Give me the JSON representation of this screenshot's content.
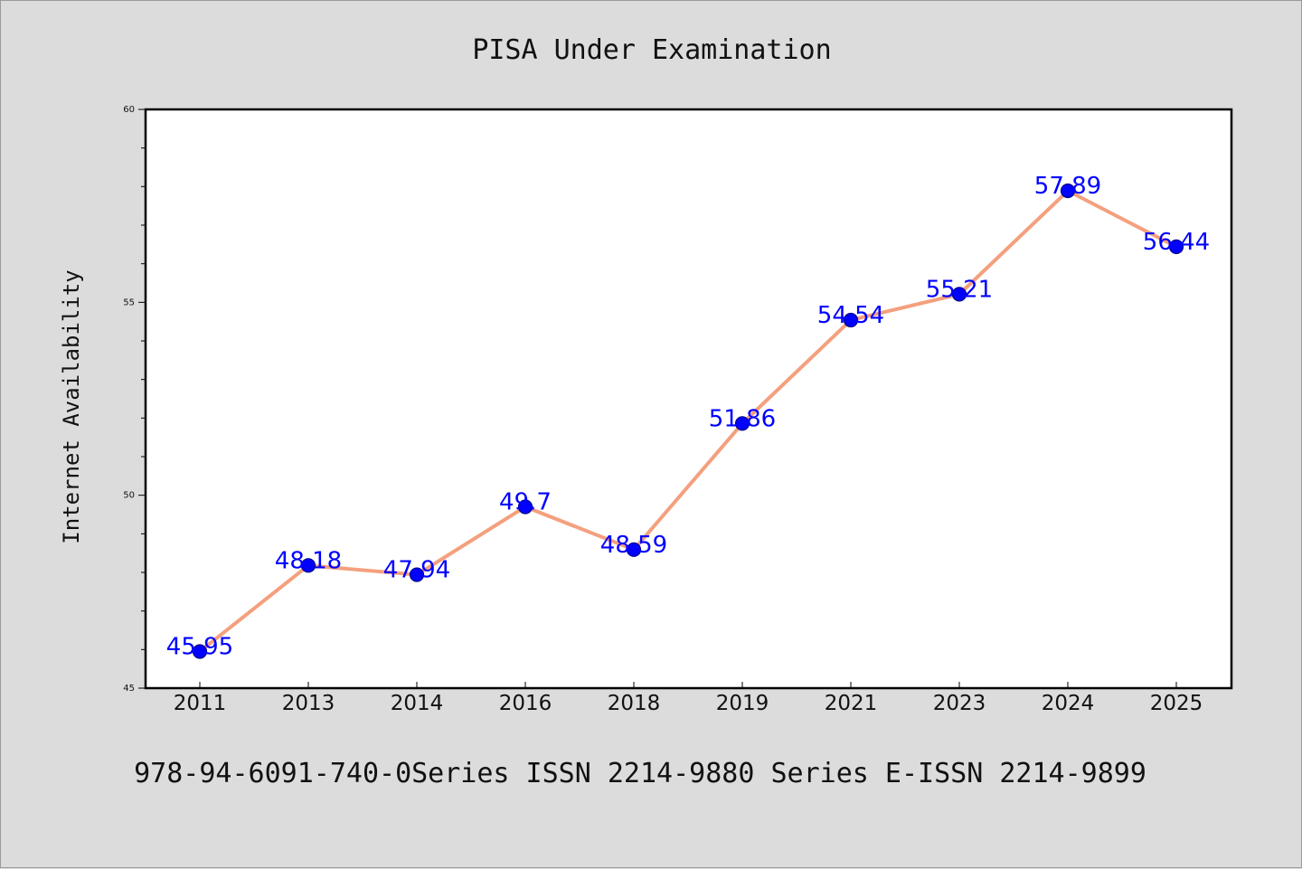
{
  "chart_data": {
    "type": "line",
    "title": "PISA Under Examination",
    "ylabel": "Internet Availability",
    "xlabel": "",
    "categories": [
      "2011",
      "2013",
      "2014",
      "2016",
      "2018",
      "2019",
      "2021",
      "2023",
      "2024",
      "2025"
    ],
    "values": [
      45.95,
      48.18,
      47.94,
      49.7,
      48.59,
      51.86,
      54.54,
      55.21,
      57.89,
      56.44
    ],
    "data_labels": [
      "45.95",
      "48.18",
      "47.94",
      "49.7",
      "48.59",
      "51.86",
      "54.54",
      "55.21",
      "57.89",
      "56.44"
    ],
    "ylim": [
      45,
      60
    ],
    "yticks": [
      "45",
      "50",
      "55",
      "60"
    ],
    "grid": false,
    "legend": "none",
    "footer": "978-94-6091-740-0Series ISSN 2214-9880 Series E-ISSN 2214-9899",
    "colors": {
      "line": "#f4a07e",
      "marker": "#0000ff",
      "marker_edge": "#00008b",
      "label": "#0000ff",
      "background": "#dcdcdc",
      "plot_background": "#ffffff"
    }
  }
}
